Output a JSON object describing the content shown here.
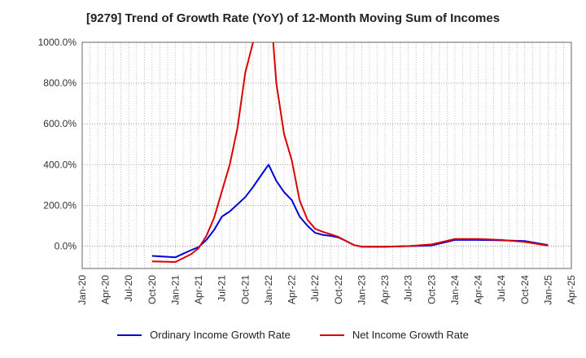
{
  "chart_data": {
    "type": "line",
    "title": "[9279]  Trend of Growth Rate (YoY) of 12-Month Moving Sum of Incomes",
    "xlabel": "",
    "ylabel": "",
    "ylim": [
      -110,
      1000
    ],
    "yticks": [
      "0.0%",
      "200.0%",
      "400.0%",
      "600.0%",
      "800.0%",
      "1000.0%"
    ],
    "ytick_values": [
      0,
      200,
      400,
      600,
      800,
      1000
    ],
    "xticks": [
      "Jan-20",
      "Apr-20",
      "Jul-20",
      "Oct-20",
      "Jan-21",
      "Apr-21",
      "Jul-21",
      "Oct-21",
      "Jan-22",
      "Apr-22",
      "Jul-22",
      "Oct-22",
      "Jan-23",
      "Apr-23",
      "Jul-23",
      "Oct-23",
      "Jan-24",
      "Apr-24",
      "Jul-24",
      "Oct-24",
      "Jan-25",
      "Apr-25"
    ],
    "grid": true,
    "legend": "bottom",
    "series": [
      {
        "name": "Ordinary Income Growth Rate",
        "color": "#0000dd",
        "points": [
          [
            "Oct-20",
            -48
          ],
          [
            "Jan-21",
            -55
          ],
          [
            "Mar-21",
            -20
          ],
          [
            "Apr-21",
            -5
          ],
          [
            "May-21",
            30
          ],
          [
            "Jun-21",
            80
          ],
          [
            "Jul-21",
            145
          ],
          [
            "Aug-21",
            170
          ],
          [
            "Sep-21",
            205
          ],
          [
            "Oct-21",
            240
          ],
          [
            "Nov-21",
            290
          ],
          [
            "Dec-21",
            345
          ],
          [
            "Jan-22",
            400
          ],
          [
            "Feb-22",
            320
          ],
          [
            "Mar-22",
            265
          ],
          [
            "Apr-22",
            225
          ],
          [
            "May-22",
            145
          ],
          [
            "Jun-22",
            100
          ],
          [
            "Jul-22",
            65
          ],
          [
            "Aug-22",
            55
          ],
          [
            "Sep-22",
            50
          ],
          [
            "Oct-22",
            42
          ],
          [
            "Nov-22",
            25
          ],
          [
            "Dec-22",
            5
          ],
          [
            "Jan-23",
            -3
          ],
          [
            "Apr-23",
            -3
          ],
          [
            "Jul-23",
            0
          ],
          [
            "Oct-23",
            3
          ],
          [
            "Jan-24",
            30
          ],
          [
            "Apr-24",
            30
          ],
          [
            "Jul-24",
            28
          ],
          [
            "Oct-24",
            25
          ],
          [
            "Jan-25",
            5
          ]
        ]
      },
      {
        "name": "Net Income Growth Rate",
        "color": "#dd0000",
        "points": [
          [
            "Oct-20",
            -75
          ],
          [
            "Jan-21",
            -78
          ],
          [
            "Mar-21",
            -40
          ],
          [
            "Apr-21",
            -10
          ],
          [
            "May-21",
            50
          ],
          [
            "Jun-21",
            140
          ],
          [
            "Jul-21",
            270
          ],
          [
            "Aug-21",
            400
          ],
          [
            "Sep-21",
            580
          ],
          [
            "Oct-21",
            850
          ],
          [
            "Nov-21",
            1000
          ],
          [
            "Dec-21",
            1300
          ],
          [
            "Jan-22",
            1300
          ],
          [
            "Feb-22",
            800
          ],
          [
            "Mar-22",
            550
          ],
          [
            "Apr-22",
            420
          ],
          [
            "May-22",
            225
          ],
          [
            "Jun-22",
            130
          ],
          [
            "Jul-22",
            85
          ],
          [
            "Aug-22",
            70
          ],
          [
            "Sep-22",
            58
          ],
          [
            "Oct-22",
            45
          ],
          [
            "Nov-22",
            25
          ],
          [
            "Dec-22",
            5
          ],
          [
            "Jan-23",
            -3
          ],
          [
            "Apr-23",
            -3
          ],
          [
            "Jul-23",
            0
          ],
          [
            "Oct-23",
            8
          ],
          [
            "Jan-24",
            35
          ],
          [
            "Apr-24",
            35
          ],
          [
            "Jul-24",
            30
          ],
          [
            "Oct-24",
            20
          ],
          [
            "Jan-25",
            2
          ]
        ]
      }
    ]
  }
}
